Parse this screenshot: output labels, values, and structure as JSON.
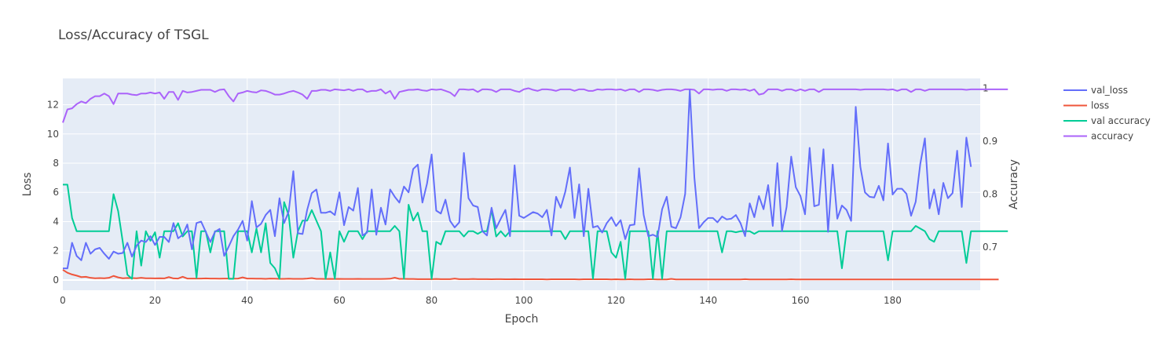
{
  "chart_data": {
    "type": "line",
    "title": "Loss/Accuracy of TSGL",
    "xlabel": "Epoch",
    "ylabel": "Loss",
    "y2label": "Accuracy",
    "xlim": [
      0,
      199
    ],
    "ylim": [
      -0.7,
      13.8
    ],
    "y2lim": [
      0.6185,
      1.0185
    ],
    "x_ticks": [
      0,
      20,
      40,
      60,
      80,
      100,
      120,
      140,
      160,
      180
    ],
    "y_ticks": [
      0,
      2,
      4,
      6,
      8,
      10,
      12
    ],
    "y2_ticks": [
      0.7,
      0.8,
      0.9,
      1
    ],
    "y2_tick_labels": [
      "0.7",
      "0.8",
      "0.9",
      "1"
    ],
    "grid": true,
    "legend_position": "right",
    "series": [
      {
        "name": "val_loss",
        "axis": "y",
        "color": "#636efa",
        "values": [
          0.8,
          0.8,
          2.55,
          1.65,
          1.35,
          2.55,
          1.8,
          2.1,
          2.2,
          1.8,
          1.45,
          1.95,
          1.8,
          1.85,
          2.55,
          1.6,
          2.35,
          2.7,
          2.6,
          3.0,
          2.4,
          2.95,
          2.95,
          2.6,
          3.9,
          2.85,
          3.1,
          3.8,
          2.1,
          3.9,
          4.0,
          3.3,
          2.6,
          3.3,
          3.5,
          1.65,
          2.3,
          3.0,
          3.45,
          4.05,
          2.7,
          5.4,
          3.6,
          3.85,
          4.45,
          4.8,
          3.0,
          5.6,
          3.9,
          4.7,
          7.45,
          3.2,
          3.15,
          4.8,
          5.95,
          6.2,
          4.6,
          4.6,
          4.7,
          4.45,
          6.0,
          3.75,
          5.0,
          4.75,
          6.3,
          3.05,
          3.25,
          6.2,
          3.1,
          4.95,
          3.8,
          6.2,
          5.7,
          5.3,
          6.4,
          6.0,
          7.6,
          7.9,
          5.3,
          6.6,
          8.6,
          4.75,
          4.55,
          5.5,
          4.05,
          3.6,
          3.95,
          8.7,
          5.6,
          5.1,
          5.0,
          3.35,
          3.05,
          4.95,
          3.55,
          4.2,
          4.8,
          3.0,
          7.85,
          4.4,
          4.25,
          4.45,
          4.65,
          4.55,
          4.3,
          4.8,
          3.05,
          5.7,
          4.95,
          6.05,
          7.7,
          4.25,
          6.55,
          3.0,
          6.25,
          3.6,
          3.7,
          3.25,
          3.9,
          4.3,
          3.7,
          4.1,
          2.8,
          3.75,
          3.8,
          7.65,
          4.45,
          3.0,
          3.1,
          2.95,
          4.85,
          5.7,
          3.65,
          3.55,
          4.3,
          5.9,
          13.0,
          7.0,
          3.55,
          3.95,
          4.25,
          4.25,
          3.95,
          4.35,
          4.15,
          4.2,
          4.45,
          3.9,
          3.0,
          5.25,
          4.3,
          5.75,
          4.85,
          6.5,
          3.7,
          8.0,
          3.35,
          5.0,
          8.45,
          6.35,
          5.75,
          4.5,
          9.05,
          5.05,
          5.15,
          8.95,
          3.3,
          7.9,
          4.2,
          5.1,
          4.8,
          4.05,
          11.85,
          7.75,
          6.0,
          5.7,
          5.65,
          6.45,
          5.45,
          9.35,
          5.85,
          6.25,
          6.25,
          5.9,
          4.4,
          5.35,
          7.95,
          9.7,
          4.9,
          6.2,
          4.5,
          6.65,
          5.6,
          5.95,
          8.85,
          5.0,
          9.75,
          7.75
        ]
      },
      {
        "name": "loss",
        "axis": "y",
        "color": "#ef553b",
        "values": [
          0.7,
          0.5,
          0.38,
          0.3,
          0.2,
          0.22,
          0.15,
          0.12,
          0.13,
          0.12,
          0.15,
          0.28,
          0.18,
          0.12,
          0.14,
          0.13,
          0.12,
          0.15,
          0.12,
          0.12,
          0.11,
          0.12,
          0.11,
          0.2,
          0.11,
          0.1,
          0.22,
          0.1,
          0.1,
          0.1,
          0.1,
          0.11,
          0.1,
          0.1,
          0.09,
          0.1,
          0.1,
          0.09,
          0.1,
          0.18,
          0.1,
          0.1,
          0.09,
          0.09,
          0.08,
          0.1,
          0.09,
          0.08,
          0.08,
          0.09,
          0.08,
          0.08,
          0.08,
          0.1,
          0.13,
          0.08,
          0.08,
          0.07,
          0.08,
          0.07,
          0.08,
          0.07,
          0.07,
          0.07,
          0.08,
          0.07,
          0.07,
          0.07,
          0.07,
          0.07,
          0.08,
          0.09,
          0.16,
          0.08,
          0.08,
          0.07,
          0.07,
          0.06,
          0.06,
          0.06,
          0.06,
          0.07,
          0.06,
          0.06,
          0.06,
          0.1,
          0.06,
          0.06,
          0.06,
          0.07,
          0.06,
          0.06,
          0.06,
          0.05,
          0.06,
          0.06,
          0.05,
          0.05,
          0.06,
          0.05,
          0.05,
          0.05,
          0.05,
          0.05,
          0.05,
          0.04,
          0.05,
          0.05,
          0.05,
          0.05,
          0.05,
          0.05,
          0.04,
          0.05,
          0.05,
          0.05,
          0.05,
          0.05,
          0.05,
          0.04,
          0.05,
          0.04,
          0.04,
          0.05,
          0.04,
          0.04,
          0.04,
          0.05,
          0.05,
          0.04,
          0.04,
          0.04,
          0.08,
          0.04,
          0.04,
          0.04,
          0.04,
          0.04,
          0.04,
          0.04,
          0.04,
          0.04,
          0.04,
          0.04,
          0.04,
          0.04,
          0.04,
          0.04,
          0.06,
          0.04,
          0.04,
          0.04,
          0.04,
          0.04,
          0.04,
          0.04,
          0.04,
          0.04,
          0.05,
          0.04,
          0.04,
          0.04,
          0.04,
          0.04,
          0.04,
          0.04,
          0.04,
          0.04,
          0.04,
          0.04,
          0.04,
          0.04,
          0.04,
          0.04,
          0.04,
          0.04,
          0.04,
          0.04,
          0.04,
          0.04,
          0.04,
          0.04,
          0.04,
          0.04,
          0.04,
          0.04,
          0.04,
          0.04,
          0.04,
          0.04,
          0.04,
          0.04,
          0.04,
          0.04,
          0.04,
          0.04,
          0.04,
          0.04,
          0.04,
          0.04,
          0.04,
          0.04,
          0.04,
          0.04
        ]
      },
      {
        "name": "val accuracy",
        "axis": "y2",
        "color": "#00cc96",
        "values": [
          0.818,
          0.818,
          0.755,
          0.73,
          0.73,
          0.73,
          0.73,
          0.73,
          0.73,
          0.73,
          0.73,
          0.8,
          0.768,
          0.71,
          0.648,
          0.64,
          0.73,
          0.665,
          0.73,
          0.712,
          0.728,
          0.68,
          0.73,
          0.73,
          0.73,
          0.745,
          0.72,
          0.73,
          0.73,
          0.642,
          0.73,
          0.73,
          0.69,
          0.73,
          0.73,
          0.73,
          0.64,
          0.64,
          0.73,
          0.73,
          0.73,
          0.69,
          0.735,
          0.69,
          0.745,
          0.67,
          0.66,
          0.64,
          0.785,
          0.76,
          0.68,
          0.73,
          0.75,
          0.75,
          0.77,
          0.75,
          0.73,
          0.64,
          0.69,
          0.64,
          0.73,
          0.71,
          0.73,
          0.73,
          0.73,
          0.715,
          0.73,
          0.73,
          0.73,
          0.73,
          0.73,
          0.73,
          0.74,
          0.73,
          0.64,
          0.78,
          0.75,
          0.765,
          0.73,
          0.73,
          0.64,
          0.71,
          0.705,
          0.73,
          0.73,
          0.73,
          0.73,
          0.72,
          0.73,
          0.73,
          0.725,
          0.73,
          0.73,
          0.77,
          0.72,
          0.73,
          0.72,
          0.73,
          0.73,
          0.73,
          0.73,
          0.73,
          0.73,
          0.73,
          0.73,
          0.73,
          0.73,
          0.73,
          0.73,
          0.715,
          0.73,
          0.73,
          0.73,
          0.73,
          0.73,
          0.64,
          0.73,
          0.73,
          0.73,
          0.69,
          0.68,
          0.71,
          0.64,
          0.73,
          0.73,
          0.73,
          0.73,
          0.73,
          0.64,
          0.73,
          0.64,
          0.73,
          0.73,
          0.73,
          0.73,
          0.73,
          0.73,
          0.73,
          0.73,
          0.73,
          0.73,
          0.73,
          0.73,
          0.69,
          0.73,
          0.73,
          0.728,
          0.73,
          0.73,
          0.73,
          0.725,
          0.73,
          0.73,
          0.73,
          0.73,
          0.73,
          0.73,
          0.73,
          0.73,
          0.73,
          0.73,
          0.73,
          0.73,
          0.73,
          0.73,
          0.73,
          0.73,
          0.73,
          0.73,
          0.66,
          0.73,
          0.73,
          0.73,
          0.73,
          0.73,
          0.73,
          0.73,
          0.73,
          0.73,
          0.675,
          0.73,
          0.73,
          0.73,
          0.73,
          0.73,
          0.74,
          0.735,
          0.73,
          0.715,
          0.71,
          0.73,
          0.73,
          0.73,
          0.73,
          0.73,
          0.73,
          0.67,
          0.73,
          0.73,
          0.73,
          0.73,
          0.73,
          0.73,
          0.73,
          0.73,
          0.73
        ]
      },
      {
        "name": "accuracy",
        "axis": "y2",
        "color": "#ab63fa",
        "values": [
          0.935,
          0.96,
          0.962,
          0.97,
          0.975,
          0.972,
          0.98,
          0.985,
          0.985,
          0.99,
          0.985,
          0.97,
          0.99,
          0.99,
          0.99,
          0.988,
          0.987,
          0.99,
          0.99,
          0.992,
          0.99,
          0.992,
          0.98,
          0.993,
          0.993,
          0.978,
          0.995,
          0.992,
          0.993,
          0.995,
          0.997,
          0.997,
          0.997,
          0.993,
          0.997,
          0.998,
          0.985,
          0.975,
          0.99,
          0.992,
          0.995,
          0.993,
          0.992,
          0.996,
          0.995,
          0.992,
          0.988,
          0.988,
          0.99,
          0.993,
          0.995,
          0.992,
          0.988,
          0.98,
          0.995,
          0.995,
          0.997,
          0.997,
          0.995,
          0.998,
          0.997,
          0.996,
          0.998,
          0.995,
          0.998,
          0.998,
          0.993,
          0.995,
          0.995,
          0.998,
          0.99,
          0.995,
          0.98,
          0.993,
          0.995,
          0.997,
          0.997,
          0.998,
          0.996,
          0.995,
          0.998,
          0.997,
          0.998,
          0.995,
          0.992,
          0.985,
          0.998,
          0.998,
          0.997,
          0.998,
          0.993,
          0.998,
          0.998,
          0.997,
          0.993,
          0.998,
          0.998,
          0.998,
          0.995,
          0.993,
          0.998,
          1,
          0.997,
          0.995,
          0.998,
          0.998,
          0.997,
          0.995,
          0.998,
          0.998,
          0.998,
          0.995,
          0.998,
          0.998,
          0.995,
          0.995,
          0.998,
          0.997,
          0.998,
          0.998,
          0.997,
          0.998,
          0.995,
          0.998,
          0.998,
          0.993,
          0.998,
          0.998,
          0.997,
          0.995,
          0.997,
          0.998,
          0.998,
          0.997,
          0.995,
          0.998,
          0.998,
          0.997,
          0.99,
          0.998,
          0.998,
          0.997,
          0.998,
          0.998,
          0.995,
          0.998,
          0.998,
          0.997,
          0.998,
          0.995,
          0.998,
          0.988,
          0.99,
          0.998,
          0.998,
          0.998,
          0.995,
          0.998,
          0.998,
          0.995,
          0.998,
          0.995,
          0.998,
          0.998,
          0.993,
          0.998,
          0.998,
          0.998,
          0.998,
          0.998,
          0.998,
          0.998,
          0.998,
          0.997,
          0.998,
          0.998,
          0.998,
          0.998,
          0.998,
          0.997,
          0.998,
          0.995,
          0.998,
          0.998,
          0.993,
          0.998,
          0.998,
          0.995,
          0.998,
          0.998,
          0.998,
          0.998,
          0.998,
          0.998,
          0.998,
          0.998,
          0.997,
          0.998,
          0.998,
          0.998,
          0.998,
          0.998,
          0.998,
          0.998,
          0.998,
          0.998
        ]
      }
    ]
  }
}
